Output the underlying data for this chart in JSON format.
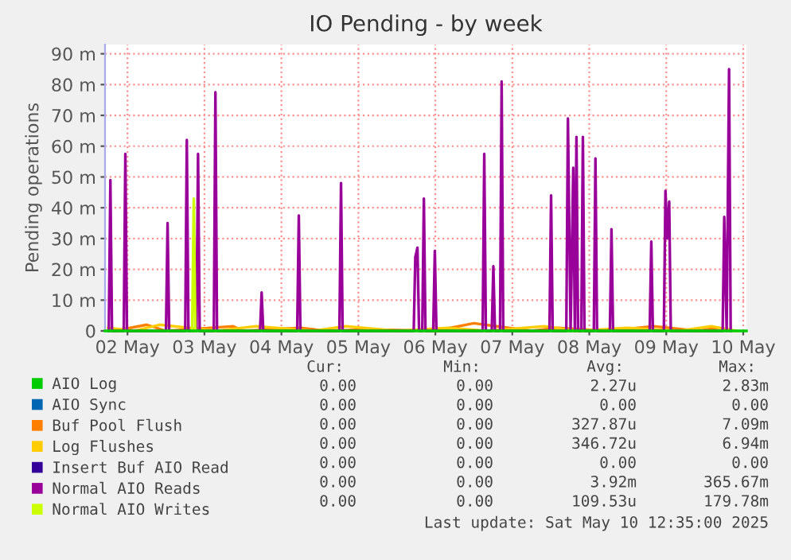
{
  "chart_data": {
    "type": "line",
    "title": "IO Pending - by week",
    "ylabel": "Pending operations",
    "xlim": [
      "2025-05-01T17:00",
      "2025-05-10T01:00"
    ],
    "xticks": [
      {
        "value": "2025-05-02",
        "label": "02 May"
      },
      {
        "value": "2025-05-03",
        "label": "03 May"
      },
      {
        "value": "2025-05-04",
        "label": "04 May"
      },
      {
        "value": "2025-05-05",
        "label": "05 May"
      },
      {
        "value": "2025-05-06",
        "label": "06 May"
      },
      {
        "value": "2025-05-07",
        "label": "07 May"
      },
      {
        "value": "2025-05-08",
        "label": "08 May"
      },
      {
        "value": "2025-05-09",
        "label": "09 May"
      },
      {
        "value": "2025-05-10",
        "label": "10 May"
      }
    ],
    "ylim": [
      0,
      93
    ],
    "yticks": [
      0,
      {
        "value": 10,
        "label": "10 m"
      },
      {
        "value": 20,
        "label": "20 m"
      },
      {
        "value": 30,
        "label": "30 m"
      },
      {
        "value": 40,
        "label": "40 m"
      },
      {
        "value": 50,
        "label": "50 m"
      },
      {
        "value": 60,
        "label": "60 m"
      },
      {
        "value": 70,
        "label": "70 m"
      },
      {
        "value": 80,
        "label": "80 m"
      },
      {
        "value": 90,
        "label": "90 m"
      }
    ],
    "grid": true,
    "legend": "bottom",
    "series": [
      {
        "name": "AIO Log",
        "color": "#00cc00",
        "x": [
          "2025-05-01T17:00",
          "2025-05-10T01:00"
        ],
        "values": [
          0,
          0
        ]
      },
      {
        "name": "AIO Sync",
        "color": "#0066b3"
      },
      {
        "name": "Buf Pool Flush",
        "color": "#ff8000",
        "x": [
          "2025-05-01T20:00",
          "2025-05-02T06:00",
          "2025-05-02T12:00",
          "2025-05-03T09:00",
          "2025-05-03T12:00",
          "2025-05-04T06:00",
          "2025-05-04T14:00",
          "2025-05-05T02:00",
          "2025-05-06T00:00",
          "2025-05-06T12:00",
          "2025-05-07T06:00",
          "2025-05-07T14:00",
          "2025-05-08T06:00",
          "2025-05-08T20:00",
          "2025-05-09T10:00",
          "2025-05-09T16:00"
        ],
        "values": [
          0,
          2,
          0,
          1.5,
          0,
          1,
          0,
          0.5,
          0,
          2.5,
          0,
          1,
          0,
          1.5,
          0,
          1
        ]
      },
      {
        "name": "Log Flushes",
        "color": "#ffcc00",
        "x": [
          "2025-05-01T18:00",
          "2025-05-02T02:00",
          "2025-05-02T10:00",
          "2025-05-03T04:00",
          "2025-05-03T16:00",
          "2025-05-04T10:00",
          "2025-05-04T20:00",
          "2025-05-05T12:00",
          "2025-05-06T04:00",
          "2025-05-06T16:00",
          "2025-05-07T10:00",
          "2025-05-07T20:00",
          "2025-05-08T12:00",
          "2025-05-09T04:00",
          "2025-05-09T14:00",
          "2025-05-09T22:00"
        ],
        "values": [
          1,
          0,
          2,
          0,
          1.5,
          0,
          1.5,
          0,
          1,
          0,
          1.5,
          0,
          1,
          0,
          1.5,
          0
        ]
      },
      {
        "name": "Insert Buf AIO Read",
        "color": "#330099"
      },
      {
        "name": "Normal AIO Reads",
        "color": "#990099",
        "x": [
          "2025-05-01T18:10",
          "2025-05-01T18:40",
          "2025-05-01T19:10",
          "2025-05-01T22:50",
          "2025-05-01T23:20",
          "2025-05-01T23:50",
          "2025-05-02T12:00",
          "2025-05-02T12:30",
          "2025-05-02T13:00",
          "2025-05-02T18:00",
          "2025-05-02T18:30",
          "2025-05-02T19:00",
          "2025-05-02T21:30",
          "2025-05-02T22:00",
          "2025-05-02T22:30",
          "2025-05-03T02:55",
          "2025-05-03T03:25",
          "2025-05-03T03:55",
          "2025-05-03T17:20",
          "2025-05-03T17:50",
          "2025-05-03T18:20",
          "2025-05-04T04:55",
          "2025-05-04T05:25",
          "2025-05-04T05:55",
          "2025-05-04T18:05",
          "2025-05-04T18:35",
          "2025-05-04T19:05",
          "2025-05-05T17:15",
          "2025-05-05T17:45",
          "2025-05-05T18:25",
          "2025-05-05T18:55",
          "2025-05-05T19:55",
          "2025-05-05T20:25",
          "2025-05-05T20:55",
          "2025-05-05T23:20",
          "2025-05-05T23:50",
          "2025-05-06T00:20",
          "2025-05-06T14:45",
          "2025-05-06T15:15",
          "2025-05-06T15:45",
          "2025-05-06T17:35",
          "2025-05-06T18:05",
          "2025-05-06T18:35",
          "2025-05-06T20:10",
          "2025-05-06T20:40",
          "2025-05-06T21:10",
          "2025-05-07T11:35",
          "2025-05-07T12:05",
          "2025-05-07T12:35",
          "2025-05-07T16:50",
          "2025-05-07T17:20",
          "2025-05-07T18:10",
          "2025-05-07T19:00",
          "2025-05-07T19:30",
          "2025-05-07T20:00",
          "2025-05-07T20:30",
          "2025-05-07T21:30",
          "2025-05-07T22:00",
          "2025-05-07T22:30",
          "2025-05-08T01:25",
          "2025-05-08T01:55",
          "2025-05-08T02:25",
          "2025-05-08T06:25",
          "2025-05-08T06:55",
          "2025-05-08T07:25",
          "2025-05-08T18:50",
          "2025-05-08T19:20",
          "2025-05-08T19:50",
          "2025-05-08T23:15",
          "2025-05-08T23:45",
          "2025-05-09T00:20",
          "2025-05-09T00:55",
          "2025-05-09T01:25",
          "2025-05-09T17:35",
          "2025-05-09T18:05",
          "2025-05-09T18:50",
          "2025-05-09T19:35",
          "2025-05-09T20:05"
        ],
        "values": [
          0,
          49,
          0,
          0,
          57.5,
          0,
          0,
          35,
          0,
          0,
          62,
          0,
          0,
          57.5,
          0,
          0,
          77.5,
          0,
          0,
          12.5,
          0,
          0,
          37.5,
          0,
          0,
          48,
          0,
          0,
          24,
          27,
          0,
          0,
          43,
          0,
          0,
          26,
          0,
          0,
          57.5,
          0,
          0,
          21,
          0,
          0,
          81,
          0,
          0,
          44,
          0,
          0,
          69,
          0,
          53,
          0,
          63,
          0,
          0,
          63,
          0,
          0,
          56,
          0,
          0,
          33,
          0,
          0,
          29,
          0,
          0,
          45.5,
          30,
          42,
          0,
          0,
          37,
          0,
          85,
          0
        ]
      },
      {
        "name": "Normal AIO Writes",
        "color": "#ccff00",
        "x": [
          "2025-05-02T20:10",
          "2025-05-02T20:40",
          "2025-05-02T21:10"
        ],
        "values": [
          0,
          43,
          0
        ]
      }
    ],
    "annotations": [
      "Cur:",
      "Min:",
      "Avg:",
      "Max:",
      "0.00",
      "0.00",
      "2.27u",
      "2.83m",
      "0.00",
      "0.00",
      "0.00",
      "0.00",
      "0.00",
      "0.00",
      "327.87u",
      "7.09m",
      "0.00",
      "0.00",
      "346.72u",
      "6.94m",
      "0.00",
      "0.00",
      "0.00",
      "0.00",
      "0.00",
      "0.00",
      "3.92m",
      "365.67m",
      "0.00",
      "0.00",
      "109.53u",
      "179.78m",
      "Last update: Sat May 10 12:35:00 2025"
    ]
  }
}
